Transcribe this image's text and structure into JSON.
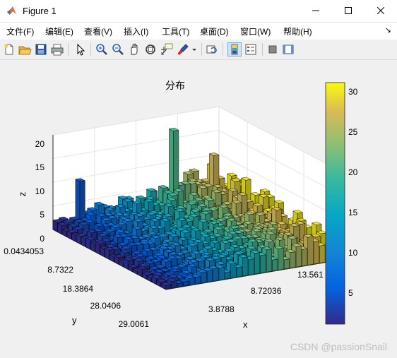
{
  "window": {
    "title": "Figure 1",
    "icon": "matlab-logo-icon",
    "controls": [
      "minimize-icon",
      "maximize-icon",
      "close-icon"
    ]
  },
  "menu": {
    "items": [
      {
        "label": "文件(F)"
      },
      {
        "label": "编辑(E)"
      },
      {
        "label": "查看(V)"
      },
      {
        "label": "插入(I)"
      },
      {
        "label": "工具(T)"
      },
      {
        "label": "桌面(D)"
      },
      {
        "label": "窗口(W)"
      },
      {
        "label": "帮助(H)"
      }
    ],
    "dock_arrow": "↘"
  },
  "toolbar": {
    "icons": [
      "new-figure-icon",
      "open-folder-icon",
      "save-icon",
      "print-icon",
      "pointer-icon",
      "zoom-in-icon",
      "zoom-out-icon",
      "pan-hand-icon",
      "rotate-3d-icon",
      "data-cursor-icon",
      "brush-icon",
      "brush-dropdown-icon",
      "link-plot-icon",
      "colorbar-icon",
      "legend-icon",
      "hide-plot-tools-icon",
      "show-plot-tools-icon"
    ]
  },
  "plot": {
    "title": "分布",
    "xlabel": "x",
    "ylabel": "y",
    "zlabel": "z",
    "x_ticks": [
      "3.8788",
      "8.72036",
      "13.561"
    ],
    "y_ticks": [
      "0.0434053",
      "8.7322",
      "18.3864",
      "28.0406",
      "29.0061"
    ],
    "z_ticks": [
      "0",
      "5",
      "10",
      "15",
      "20"
    ],
    "colorbar_ticks": [
      "5",
      "10",
      "15",
      "20",
      "25",
      "30"
    ]
  },
  "chart_data": {
    "type": "bar3",
    "title": "分布",
    "xlabel": "x",
    "ylabel": "y",
    "zlabel": "z",
    "zlim": [
      0,
      20
    ],
    "colormap": "parula",
    "colorbar_range": [
      1,
      31
    ],
    "notable_bars": [
      {
        "description": "tallest bar near middle",
        "z": 18.5
      },
      {
        "description": "tall bar at left edge",
        "z": 10.5
      },
      {
        "description": "bar right of tallest",
        "z": 12.5
      }
    ]
  },
  "watermark": "CSDN @passionSnail"
}
